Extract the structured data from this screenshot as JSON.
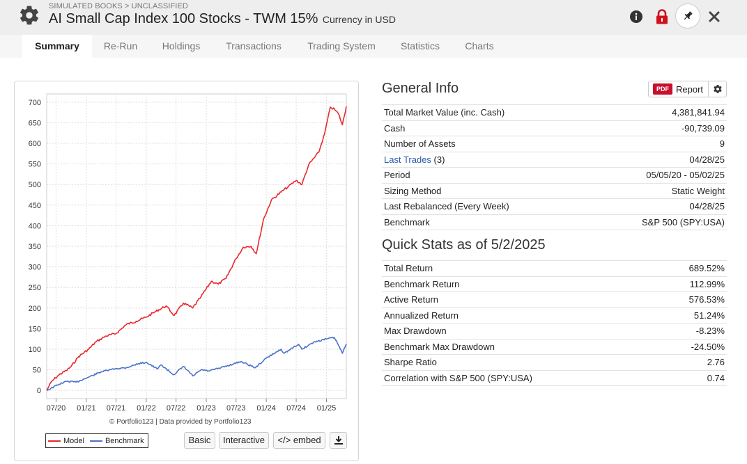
{
  "header": {
    "breadcrumb": "SIMULATED BOOKS > UNCLASSIFIED",
    "title": "AI Small Cap Index 100 Stocks - TWM 15%",
    "currency": "Currency in USD",
    "icons": [
      "gear-icon",
      "info-icon",
      "lock-icon",
      "pin-icon",
      "close-icon"
    ]
  },
  "tabs": [
    "Summary",
    "Re-Run",
    "Holdings",
    "Transactions",
    "Trading System",
    "Statistics",
    "Charts"
  ],
  "active_tab": "Summary",
  "chart_panel": {
    "copyright": "© Portfolio123 | Data provided by Portfolio123",
    "legend_model": "Model",
    "legend_benchmark": "Benchmark",
    "btn_basic": "Basic",
    "btn_interactive": "Interactive",
    "btn_embed": "</> embed"
  },
  "colors": {
    "model": "#e8282b",
    "benchmark": "#4a72c8",
    "negative": "#b22020",
    "link": "#2a5aa8",
    "pdf_badge": "#c8102e"
  },
  "chart_data": {
    "type": "line",
    "title": "",
    "xlabel": "",
    "ylabel": "",
    "ylim": [
      -20,
      720
    ],
    "yticks": [
      0,
      50,
      100,
      150,
      200,
      250,
      300,
      350,
      400,
      450,
      500,
      550,
      600,
      650,
      700
    ],
    "xticks": [
      "07/20",
      "01/21",
      "07/21",
      "01/22",
      "07/22",
      "01/23",
      "07/23",
      "01/24",
      "07/24",
      "01/25"
    ],
    "xlim": [
      "2020-05-05",
      "2025-05-02"
    ],
    "grid": true,
    "legend": "bottom-left",
    "series": [
      {
        "name": "Model",
        "points": [
          [
            "2020-05-05",
            0
          ],
          [
            "2020-06-05",
            22
          ],
          [
            "2020-07-20",
            38
          ],
          [
            "2020-09-01",
            48
          ],
          [
            "2020-10-01",
            58
          ],
          [
            "2020-11-15",
            82
          ],
          [
            "2021-01-15",
            100
          ],
          [
            "2021-03-01",
            118
          ],
          [
            "2021-05-01",
            132
          ],
          [
            "2021-07-01",
            138
          ],
          [
            "2021-09-01",
            160
          ],
          [
            "2021-11-01",
            168
          ],
          [
            "2022-01-01",
            178
          ],
          [
            "2022-03-01",
            192
          ],
          [
            "2022-05-01",
            205
          ],
          [
            "2022-06-20",
            182
          ],
          [
            "2022-08-15",
            212
          ],
          [
            "2022-10-10",
            200
          ],
          [
            "2022-12-01",
            228
          ],
          [
            "2023-02-01",
            265
          ],
          [
            "2023-03-15",
            258
          ],
          [
            "2023-05-01",
            272
          ],
          [
            "2023-07-01",
            320
          ],
          [
            "2023-08-15",
            348
          ],
          [
            "2023-10-01",
            350
          ],
          [
            "2023-11-01",
            332
          ],
          [
            "2023-12-15",
            415
          ],
          [
            "2024-02-01",
            462
          ],
          [
            "2024-04-01",
            482
          ],
          [
            "2024-05-15",
            495
          ],
          [
            "2024-07-01",
            510
          ],
          [
            "2024-08-05",
            500
          ],
          [
            "2024-09-15",
            548
          ],
          [
            "2024-11-15",
            578
          ],
          [
            "2024-12-20",
            622
          ],
          [
            "2025-01-25",
            688
          ],
          [
            "2025-02-20",
            682
          ],
          [
            "2025-03-15",
            672
          ],
          [
            "2025-04-08",
            645
          ],
          [
            "2025-05-02",
            689.52
          ]
        ]
      },
      {
        "name": "Benchmark",
        "points": [
          [
            "2020-05-05",
            0
          ],
          [
            "2020-07-20",
            15
          ],
          [
            "2020-09-03",
            22
          ],
          [
            "2020-10-30",
            20
          ],
          [
            "2021-01-15",
            32
          ],
          [
            "2021-04-01",
            45
          ],
          [
            "2021-07-01",
            53
          ],
          [
            "2021-09-01",
            55
          ],
          [
            "2021-11-15",
            65
          ],
          [
            "2022-01-03",
            68
          ],
          [
            "2022-03-08",
            52
          ],
          [
            "2022-04-01",
            62
          ],
          [
            "2022-06-16",
            38
          ],
          [
            "2022-08-16",
            58
          ],
          [
            "2022-10-12",
            35
          ],
          [
            "2022-12-01",
            50
          ],
          [
            "2023-01-15",
            47
          ],
          [
            "2023-04-01",
            55
          ],
          [
            "2023-07-31",
            70
          ],
          [
            "2023-10-27",
            55
          ],
          [
            "2023-12-31",
            78
          ],
          [
            "2024-03-31",
            100
          ],
          [
            "2024-04-19",
            90
          ],
          [
            "2024-07-15",
            112
          ],
          [
            "2024-08-05",
            100
          ],
          [
            "2024-10-15",
            117
          ],
          [
            "2024-12-31",
            125
          ],
          [
            "2025-02-19",
            128
          ],
          [
            "2025-03-15",
            110
          ],
          [
            "2025-04-08",
            90
          ],
          [
            "2025-05-02",
            112.99
          ]
        ]
      }
    ]
  },
  "general_info": {
    "title": "General Info",
    "report_badge": "PDF",
    "report_label": "Report",
    "rows": [
      {
        "label": "Total Market Value (inc. Cash)",
        "value": "4,381,841.94"
      },
      {
        "label": "Cash",
        "value": "-90,739.09"
      },
      {
        "label": "Number of Assets",
        "value": "9"
      },
      {
        "label": "Last Trades",
        "label_suffix": " (3)",
        "value": "04/28/25"
      },
      {
        "label": "Period",
        "value": "05/05/20 - 05/02/25"
      },
      {
        "label": "Sizing Method",
        "value": "Static Weight"
      },
      {
        "label": "Last Rebalanced (Every Week)",
        "value": "04/28/25"
      },
      {
        "label": "Benchmark",
        "value": "S&P 500 (SPY:USA)"
      }
    ]
  },
  "quick_stats": {
    "title": "Quick Stats as of 5/2/2025",
    "rows": [
      {
        "label": "Total Return",
        "value": "689.52%"
      },
      {
        "label": "Benchmark Return",
        "value": "112.99%"
      },
      {
        "label": "Active Return",
        "value": "576.53%"
      },
      {
        "label": "Annualized Return",
        "value": "51.24%"
      },
      {
        "label": "Max Drawdown",
        "value": "-8.23%"
      },
      {
        "label": "Benchmark Max Drawdown",
        "value": "-24.50%"
      },
      {
        "label": "Sharpe Ratio",
        "value": "2.76"
      },
      {
        "label": "Correlation with S&P 500 (SPY:USA)",
        "value": "0.74"
      }
    ]
  }
}
